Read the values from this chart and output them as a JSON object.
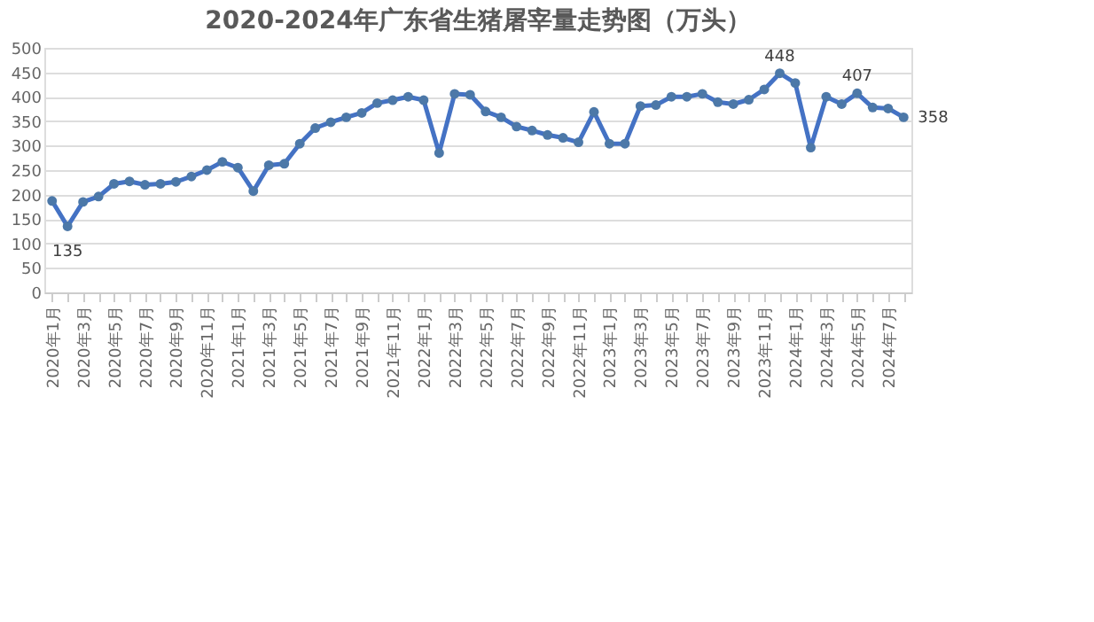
{
  "chart_data": {
    "type": "line",
    "title": "2020-2024年广东省生猪屠宰量走势图（万头）",
    "categories": [
      "2020年1月",
      null,
      "2020年3月",
      null,
      "2020年5月",
      null,
      "2020年7月",
      null,
      "2020年9月",
      null,
      "2020年11月",
      null,
      "2021年1月",
      null,
      "2021年3月",
      null,
      "2021年5月",
      null,
      "2021年7月",
      null,
      "2021年9月",
      null,
      "2021年11月",
      null,
      "2022年1月",
      null,
      "2022年3月",
      null,
      "2022年5月",
      null,
      "2022年7月",
      null,
      "2022年9月",
      null,
      "2022年11月",
      null,
      "2023年1月",
      null,
      "2023年3月",
      null,
      "2023年5月",
      null,
      "2023年7月",
      null,
      "2023年9月",
      null,
      "2023年11月",
      null,
      "2024年1月",
      null,
      "2024年3月",
      null,
      "2024年5月",
      null,
      "2024年7月",
      null
    ],
    "series": [
      {
        "color": "#4472c4",
        "values": [
          187,
          135,
          185,
          196,
          222,
          227,
          220,
          222,
          226,
          237,
          250,
          267,
          255,
          207,
          260,
          263,
          304,
          336,
          348,
          358,
          367,
          387,
          393,
          400,
          393,
          285,
          406,
          404,
          370,
          358,
          339,
          331,
          322,
          316,
          307,
          369,
          304,
          304,
          381,
          383,
          400,
          400,
          406,
          389,
          385,
          394,
          415,
          448,
          428,
          296,
          400,
          385,
          407,
          378,
          376,
          358
        ],
        "value_labels": [
          null,
          "135",
          null,
          null,
          null,
          null,
          null,
          null,
          null,
          null,
          null,
          null,
          null,
          null,
          null,
          null,
          null,
          null,
          null,
          null,
          null,
          null,
          null,
          null,
          null,
          null,
          null,
          null,
          null,
          null,
          null,
          null,
          null,
          null,
          null,
          null,
          null,
          null,
          null,
          null,
          null,
          null,
          null,
          null,
          null,
          null,
          null,
          "448",
          null,
          null,
          null,
          null,
          "407",
          null,
          null,
          "358"
        ]
      }
    ],
    "ylim": [
      0,
      500
    ],
    "yticks": [
      0,
      50,
      100,
      150,
      200,
      250,
      300,
      350,
      400,
      450,
      500
    ],
    "grid": "y",
    "marker": "circle",
    "line_style": "solid"
  }
}
